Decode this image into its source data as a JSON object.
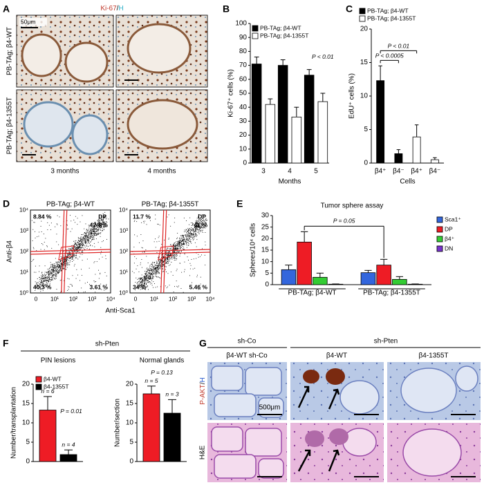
{
  "panel_labels": [
    "A",
    "B",
    "C",
    "D",
    "E",
    "F",
    "G"
  ],
  "panel_a": {
    "stain": [
      "Ki-67",
      "/",
      "H"
    ],
    "rows": [
      "PB-TAg; β4-WT",
      "PB-TAg; β4-1355T"
    ],
    "columns": [
      "3 months",
      "4 months"
    ],
    "scale_bar": "50μm"
  },
  "panel_d": {
    "plots": [
      {
        "title": "PB-TAg; β4-WT",
        "gate": "DP",
        "quadrants": [
          "8.84 %",
          "42.4 %",
          "40.3 %",
          "3.61 %"
        ]
      },
      {
        "title": "PB-TAg; β4-1355T",
        "gate": "DP",
        "quadrants": [
          "11.7 %",
          "41 %",
          "34 %",
          "5.46 %"
        ]
      }
    ],
    "ylabel": "Anti-β4",
    "xlabel": "Anti-Sca1",
    "yticks": [
      "10⁰",
      "10¹",
      "10²",
      "10³",
      "10⁴"
    ],
    "xticks": [
      "0",
      "10¹",
      "10²",
      "10³",
      "10⁴"
    ]
  },
  "panel_f": {
    "header": "sh-Pten"
  },
  "panel_g": {
    "groups": [
      "sh-Co",
      "sh-Pten"
    ],
    "columns": [
      "β4-WT sh-Co",
      "β4-WT",
      "β4-1355T"
    ],
    "rows": [
      [
        "P-AKT",
        "/",
        "H"
      ],
      "H&E"
    ],
    "scale_bar": "500μm"
  },
  "chart_data": [
    {
      "type": "bar",
      "ylabel": "Ki-67⁺ cells (%)",
      "xlabel": "Months",
      "categories": [
        "3",
        "4",
        "5"
      ],
      "series": [
        {
          "name": "PB-TAg; β4-WT",
          "color": "#000000",
          "values": [
            71,
            70,
            63
          ],
          "errors": [
            5,
            4,
            4
          ]
        },
        {
          "name": "PB-TAg; β4-1355T",
          "color": "#ffffff",
          "values": [
            42,
            33,
            44
          ],
          "errors": [
            4,
            7,
            6
          ]
        }
      ],
      "ylim": [
        0,
        100
      ],
      "yticks": [
        0,
        10,
        20,
        30,
        40,
        50,
        60,
        70,
        80,
        90,
        100
      ],
      "annotations": [
        "P < 0.01"
      ]
    },
    {
      "type": "bar",
      "ylabel": "EdU⁺ cells (%)",
      "xlabel": "Cells",
      "categories": [
        "β4⁺",
        "β4⁻",
        "β4⁺",
        "β4⁻"
      ],
      "series": [
        {
          "name": "PB-TAg; β4-WT",
          "color": "#000000",
          "values": [
            12.3,
            1.4,
            null,
            null
          ],
          "errors": [
            2.2,
            0.6,
            null,
            null
          ]
        },
        {
          "name": "PB-TAg; β4-1355T",
          "color": "#ffffff",
          "values": [
            null,
            null,
            3.9,
            0.5
          ],
          "errors": [
            null,
            null,
            1.8,
            0.3
          ]
        }
      ],
      "ylim": [
        0,
        20
      ],
      "yticks": [
        0,
        5,
        10,
        15,
        20
      ],
      "annotations": [
        "P < 0.0005",
        "P < 0.01"
      ]
    },
    {
      "type": "bar",
      "title": "Tumor sphere assay",
      "ylabel": "Spheres/10⁴ cells",
      "categories": [
        "PB-TAg; β4-WT",
        "PB-TAg; β4-1355T"
      ],
      "series": [
        {
          "name": "Sca1⁺",
          "color": "#3366dd",
          "values": [
            6.5,
            5.2
          ],
          "errors": [
            2,
            1
          ]
        },
        {
          "name": "DP",
          "color": "#ee1c25",
          "values": [
            18.5,
            8.5
          ],
          "errors": [
            4.5,
            2.5
          ]
        },
        {
          "name": "β4⁺",
          "color": "#33cc33",
          "values": [
            3.2,
            2.3
          ],
          "errors": [
            1.8,
            1.2
          ]
        },
        {
          "name": "DN",
          "color": "#7733cc",
          "values": [
            0.2,
            0.2
          ],
          "errors": [
            0.1,
            0.1
          ]
        }
      ],
      "ylim": [
        0,
        30
      ],
      "yticks": [
        0,
        5,
        10,
        15,
        20,
        25,
        30
      ],
      "annotations": [
        "P = 0.05"
      ]
    },
    {
      "type": "bar",
      "title": "PIN lesions",
      "ylabel": "Number/transplantation",
      "categories": [
        null
      ],
      "series": [
        {
          "name": "β4-WT",
          "color": "#ee1c25",
          "values": [
            13.3
          ],
          "errors": [
            3.5
          ]
        },
        {
          "name": "β4-1355T",
          "color": "#000000",
          "values": [
            1.8
          ],
          "errors": [
            1.2
          ]
        }
      ],
      "ylim": [
        0,
        20
      ],
      "yticks": [
        0,
        5,
        10,
        15,
        20
      ],
      "annotations": [
        "n = 6",
        "n = 4",
        "P = 0.01"
      ]
    },
    {
      "type": "bar",
      "title": "Normal glands",
      "ylabel": "Number/section",
      "categories": [
        null
      ],
      "series": [
        {
          "color": "#ee1c25",
          "values": [
            17.5
          ],
          "errors": [
            2
          ]
        },
        {
          "color": "#000000",
          "values": [
            12.5
          ],
          "errors": [
            3.5
          ]
        }
      ],
      "ylim": [
        0,
        20
      ],
      "yticks": [
        0,
        5,
        10,
        15,
        20
      ],
      "annotations": [
        "n = 5",
        "n = 3",
        "P = 0.13"
      ]
    }
  ]
}
